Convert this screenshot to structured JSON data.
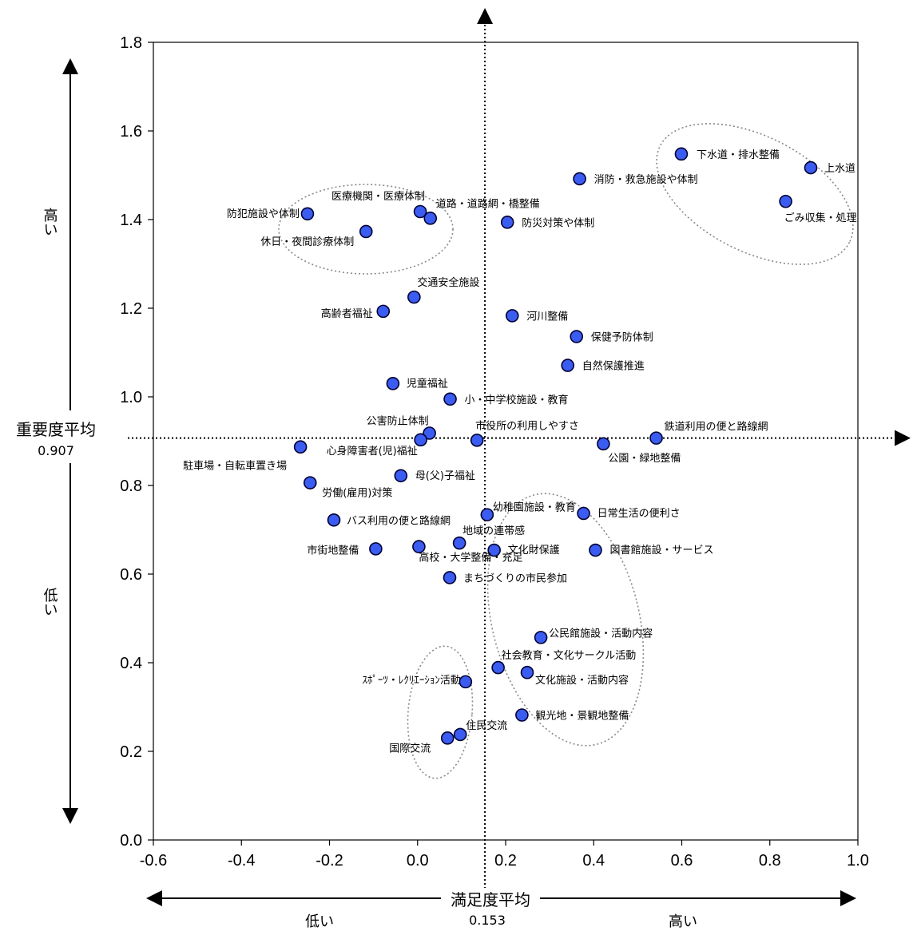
{
  "chart_data": {
    "type": "scatter",
    "xlabel": "満足度平均",
    "ylabel": "重要度平均",
    "xlim": [
      -0.6,
      1.0
    ],
    "ylim": [
      0.0,
      1.8
    ],
    "x_ticks": [
      "-0.6",
      "-0.4",
      "-0.2",
      "0.0",
      "0.2",
      "0.4",
      "0.6",
      "0.8",
      "1.0"
    ],
    "y_ticks": [
      "0.0",
      "0.2",
      "0.4",
      "0.6",
      "0.8",
      "1.0",
      "1.2",
      "1.4",
      "1.6",
      "1.8"
    ],
    "grid": false,
    "point_color": "#3b5cf0",
    "x_mean": 0.153,
    "x_mean_label": "0.153",
    "y_mean": 0.907,
    "y_mean_label": "0.907",
    "x_low": "低い",
    "x_high": "高い",
    "y_high": "高い",
    "y_low": "低い",
    "points": [
      {
        "label": "下水道・排水整備",
        "x": 0.599,
        "y": 1.548
      },
      {
        "label": "上水道",
        "x": 0.893,
        "y": 1.517
      },
      {
        "label": "ごみ収集・処理",
        "x": 0.836,
        "y": 1.441
      },
      {
        "label": "消防・救急施設や体制",
        "x": 0.368,
        "y": 1.492
      },
      {
        "label": "防犯施設や体制",
        "x": -0.25,
        "y": 1.413
      },
      {
        "label": "医療機関・医療体制",
        "x": 0.006,
        "y": 1.418
      },
      {
        "label": "道路・道路網・橋整備",
        "x": 0.029,
        "y": 1.403
      },
      {
        "label": "防災対策や体制",
        "x": 0.204,
        "y": 1.394
      },
      {
        "label": "休日・夜間診療体制",
        "x": -0.117,
        "y": 1.373
      },
      {
        "label": "交通安全施設",
        "x": -0.008,
        "y": 1.225
      },
      {
        "label": "高齢者福祉",
        "x": -0.078,
        "y": 1.193
      },
      {
        "label": "河川整備",
        "x": 0.215,
        "y": 1.183
      },
      {
        "label": "保健予防体制",
        "x": 0.361,
        "y": 1.136
      },
      {
        "label": "自然保護推進",
        "x": 0.341,
        "y": 1.071
      },
      {
        "label": "児童福祉",
        "x": -0.056,
        "y": 1.03
      },
      {
        "label": "小・中学校施設・教育",
        "x": 0.074,
        "y": 0.995
      },
      {
        "label": "公害防止体制",
        "x": 0.027,
        "y": 0.918
      },
      {
        "label": "市役所の利用しやすさ",
        "x": 0.135,
        "y": 0.902
      },
      {
        "label": "心身障害者(児)福祉",
        "x": 0.007,
        "y": 0.903
      },
      {
        "label": "鉄道利用の便と路線網",
        "x": 0.542,
        "y": 0.907
      },
      {
        "label": "公園・緑地整備",
        "x": 0.422,
        "y": 0.894
      },
      {
        "label": "駐車場・自転車置き場",
        "x": -0.266,
        "y": 0.887
      },
      {
        "label": "母(父)子福祉",
        "x": -0.038,
        "y": 0.822
      },
      {
        "label": "労働(雇用)対策",
        "x": -0.244,
        "y": 0.806
      },
      {
        "label": "幼稚園施設・教育",
        "x": 0.158,
        "y": 0.734
      },
      {
        "label": "日常生活の便利さ",
        "x": 0.377,
        "y": 0.737
      },
      {
        "label": "バス利用の便と路線網",
        "x": -0.19,
        "y": 0.722
      },
      {
        "label": "地域の連帯感",
        "x": 0.095,
        "y": 0.67
      },
      {
        "label": "市街地整備",
        "x": -0.095,
        "y": 0.657
      },
      {
        "label": "高校・大学整備・充足",
        "x": 0.003,
        "y": 0.662
      },
      {
        "label": "文化財保護",
        "x": 0.174,
        "y": 0.654
      },
      {
        "label": "図書館施設・サービス",
        "x": 0.404,
        "y": 0.654
      },
      {
        "label": "まちづくりの市民参加",
        "x": 0.073,
        "y": 0.592
      },
      {
        "label": "公民館施設・活動内容",
        "x": 0.28,
        "y": 0.457
      },
      {
        "label": "社会教育・文化サークル活動",
        "x": 0.183,
        "y": 0.389
      },
      {
        "label": "文化施設・活動内容",
        "x": 0.249,
        "y": 0.378
      },
      {
        "label": "ｽﾎﾟｰﾂ・ﾚｸﾘｴｰｼｮﾝ活動",
        "x": 0.109,
        "y": 0.357
      },
      {
        "label": "観光地・景観地整備",
        "x": 0.237,
        "y": 0.282
      },
      {
        "label": "住民交流",
        "x": 0.097,
        "y": 0.238
      },
      {
        "label": "国際交流",
        "x": 0.068,
        "y": 0.23
      }
    ]
  }
}
